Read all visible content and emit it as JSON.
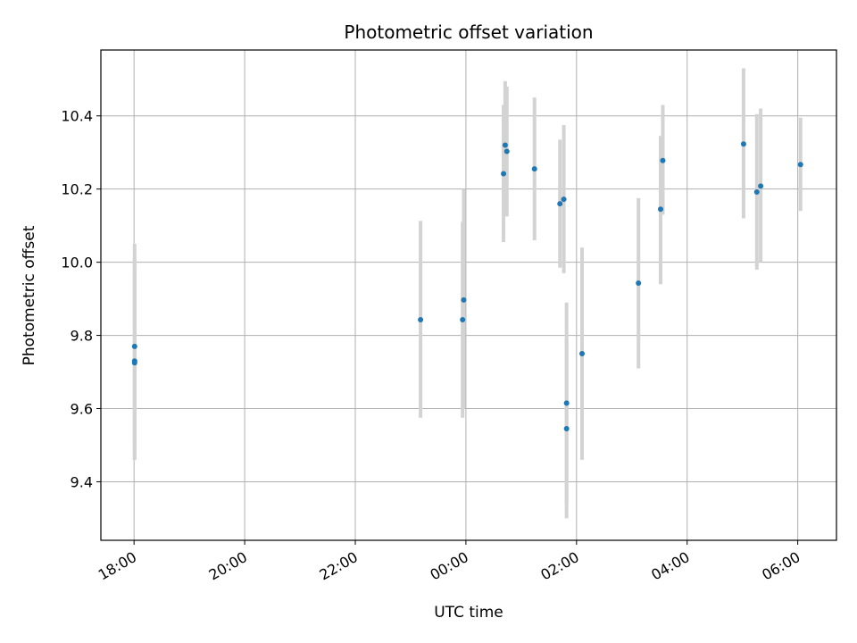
{
  "chart_data": {
    "type": "scatter",
    "title": "Photometric offset variation",
    "xlabel": "UTC time",
    "ylabel": "Photometric offset",
    "x_ticks": [
      "18:00",
      "20:00",
      "22:00",
      "00:00",
      "02:00",
      "04:00",
      "06:00"
    ],
    "y_ticks": [
      "9.4",
      "9.6",
      "9.8",
      "10.0",
      "10.2",
      "10.4"
    ],
    "x_unit": "hours relative to 00:00 UTC",
    "xlim": [
      -6.6,
      6.7
    ],
    "ylim": [
      9.24,
      10.58
    ],
    "grid": true,
    "errorbar_color": "#d3d3d3",
    "point_color": "#1f77b4",
    "points": [
      {
        "x": -5.99,
        "y": 9.77,
        "err_low": 9.49,
        "err_high": 10.05
      },
      {
        "x": -5.99,
        "y": 9.73,
        "err_low": 9.46,
        "err_high": 10.01
      },
      {
        "x": -5.99,
        "y": 9.725,
        "err_low": 9.46,
        "err_high": 9.99
      },
      {
        "x": -0.82,
        "y": 9.843,
        "err_low": 9.575,
        "err_high": 10.113
      },
      {
        "x": -0.06,
        "y": 9.843,
        "err_low": 9.575,
        "err_high": 10.11
      },
      {
        "x": -0.04,
        "y": 9.897,
        "err_low": 9.6,
        "err_high": 10.2
      },
      {
        "x": 0.68,
        "y": 10.242,
        "err_low": 10.055,
        "err_high": 10.43
      },
      {
        "x": 0.71,
        "y": 10.32,
        "err_low": 10.15,
        "err_high": 10.495
      },
      {
        "x": 0.74,
        "y": 10.303,
        "err_low": 10.125,
        "err_high": 10.48
      },
      {
        "x": 1.24,
        "y": 10.255,
        "err_low": 10.06,
        "err_high": 10.45
      },
      {
        "x": 1.7,
        "y": 10.16,
        "err_low": 9.985,
        "err_high": 10.335
      },
      {
        "x": 1.77,
        "y": 10.172,
        "err_low": 9.97,
        "err_high": 10.375
      },
      {
        "x": 1.82,
        "y": 9.615,
        "err_low": 9.34,
        "err_high": 9.89
      },
      {
        "x": 1.82,
        "y": 9.545,
        "err_low": 9.3,
        "err_high": 9.79
      },
      {
        "x": 2.1,
        "y": 9.75,
        "err_low": 9.46,
        "err_high": 10.04
      },
      {
        "x": 3.12,
        "y": 9.943,
        "err_low": 9.71,
        "err_high": 10.175
      },
      {
        "x": 3.52,
        "y": 10.145,
        "err_low": 9.94,
        "err_high": 10.345
      },
      {
        "x": 3.56,
        "y": 10.278,
        "err_low": 10.13,
        "err_high": 10.43
      },
      {
        "x": 5.02,
        "y": 10.323,
        "err_low": 10.12,
        "err_high": 10.53
      },
      {
        "x": 5.26,
        "y": 10.192,
        "err_low": 9.98,
        "err_high": 10.405
      },
      {
        "x": 5.33,
        "y": 10.208,
        "err_low": 10.0,
        "err_high": 10.42
      },
      {
        "x": 6.05,
        "y": 10.267,
        "err_low": 10.14,
        "err_high": 10.395
      }
    ]
  }
}
